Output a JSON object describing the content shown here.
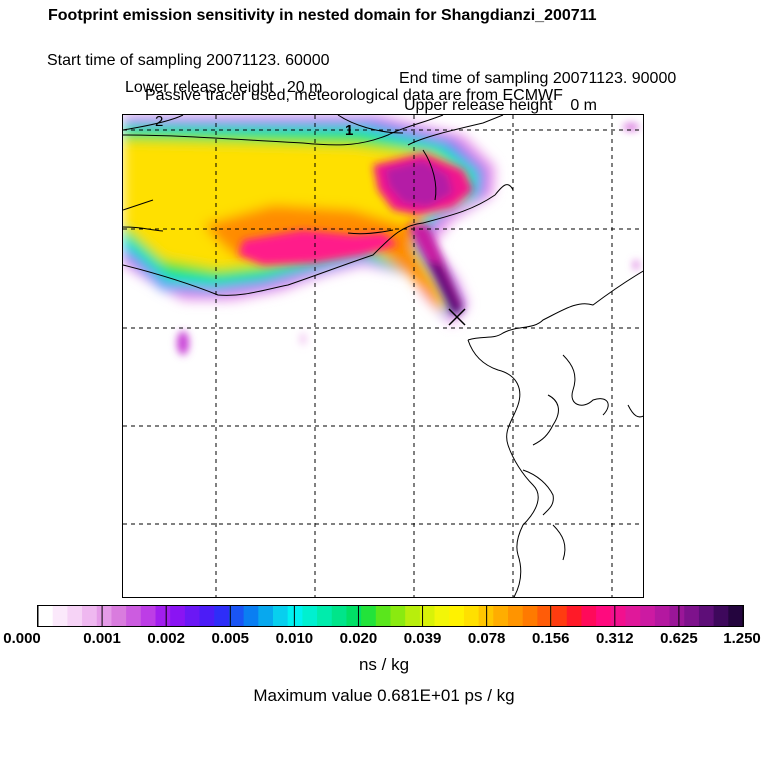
{
  "header": {
    "title": "Footprint emission sensitivity in nested domain for Shangdianzi_200711",
    "start_label": "Start time of sampling 20071123. 60000",
    "end_label": "End time of sampling 20071123. 90000",
    "lower_label": "Lower release height   20 m",
    "upper_label": "Upper release height    0 m",
    "tracer_note": "Passive tracer used, meteorological data are from ECMWF"
  },
  "map": {
    "marker_label": "1",
    "contour_label": "2"
  },
  "colorbar": {
    "tick_labels": [
      "0.000",
      "0.001",
      "0.002",
      "0.005",
      "0.010",
      "0.020",
      "0.039",
      "0.078",
      "0.156",
      "0.312",
      "0.625",
      "1.250"
    ],
    "colors": [
      "#ffffff",
      "#fbe9fb",
      "#f6d3f6",
      "#efb8f0",
      "#e59be8",
      "#d97cde",
      "#cc5ce0",
      "#bd3de6",
      "#a21eee",
      "#8a14f3",
      "#6b18f5",
      "#4c1cf7",
      "#2e2ef8",
      "#1a55f5",
      "#0a7ef2",
      "#08a8ee",
      "#08cfee",
      "#00f2f2",
      "#00f0d0",
      "#00ecac",
      "#00e58a",
      "#00e066",
      "#22e33a",
      "#5ae61c",
      "#8aea10",
      "#b8ee0c",
      "#d8f208",
      "#f2f608",
      "#fff200",
      "#ffe000",
      "#ffc600",
      "#ffad00",
      "#ff9400",
      "#ff7a00",
      "#ff5c08",
      "#ff3c10",
      "#ff1a28",
      "#ff0a5a",
      "#ff0a7e",
      "#f2108e",
      "#e0189a",
      "#cc1aa2",
      "#b418a0",
      "#9a1698",
      "#7e128c",
      "#5e0e78",
      "#3e085c",
      "#24053e"
    ],
    "units": "ns / kg",
    "max_value_text": "Maximum value  0.681E+01 ps / kg"
  }
}
